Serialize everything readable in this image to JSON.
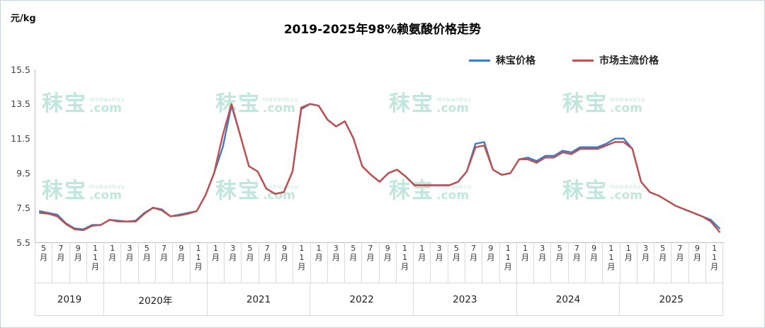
{
  "title": "2019-2025年98%赖氨酸价格走势",
  "y_axis_label": "元/kg",
  "legend": {
    "items": [
      {
        "label": "秣宝价格",
        "color": "#3E7BC4"
      },
      {
        "label": "市场主流价格",
        "color": "#C0504D"
      }
    ]
  },
  "watermark": {
    "main": "秣宝",
    "sub_top": "mobaobuy",
    "sub_bottom": ".com",
    "color": "#77C9B0"
  },
  "chart_data": {
    "type": "line",
    "title": "2019-2025年98%赖氨酸价格走势",
    "ylabel": "元/kg",
    "ylim": [
      5.5,
      15.5
    ],
    "y_ticks": [
      5.5,
      7.5,
      9.5,
      11.5,
      13.5,
      15.5
    ],
    "grid": false,
    "legend_position": "top",
    "x_start": "2019-05",
    "x_end": "2025-11",
    "x_tick_labels": [
      "5月",
      "7月",
      "9月",
      "11月",
      "1月",
      "3月",
      "5月",
      "7月",
      "9月",
      "11月",
      "1月",
      "3月",
      "5月",
      "7月",
      "9月",
      "11月",
      "1月",
      "3月",
      "5月",
      "7月",
      "9月",
      "11月",
      "1月",
      "3月",
      "5月",
      "7月",
      "9月",
      "11月",
      "1月",
      "3月",
      "5月",
      "7月",
      "9月",
      "11月",
      "1月",
      "3月",
      "5月",
      "7月",
      "9月",
      "11月"
    ],
    "year_cells": [
      {
        "label": "2019",
        "span": 4
      },
      {
        "label": "2020年",
        "span": 6
      },
      {
        "label": "2021",
        "span": 6
      },
      {
        "label": "2022",
        "span": 6
      },
      {
        "label": "2023",
        "span": 6
      },
      {
        "label": "2024",
        "span": 6
      },
      {
        "label": "2025",
        "span": 6
      }
    ],
    "series": [
      {
        "name": "秣宝价格",
        "color": "#3E7BC4",
        "values": [
          7.3,
          7.2,
          7.1,
          6.6,
          6.3,
          6.25,
          6.5,
          6.5,
          6.8,
          6.75,
          6.7,
          6.75,
          7.2,
          7.5,
          7.4,
          7.0,
          7.1,
          7.2,
          7.3,
          8.2,
          9.5,
          11.0,
          13.4,
          11.7,
          9.9,
          9.6,
          8.6,
          8.3,
          8.4,
          9.6,
          13.2,
          13.5,
          13.4,
          12.6,
          12.2,
          12.5,
          11.5,
          9.9,
          9.4,
          9.0,
          9.5,
          9.7,
          9.3,
          8.8,
          8.8,
          8.8,
          8.8,
          8.8,
          9.0,
          9.6,
          11.2,
          11.3,
          9.7,
          9.4,
          9.5,
          10.3,
          10.4,
          10.2,
          10.5,
          10.5,
          10.8,
          10.7,
          11.0,
          11.0,
          11.0,
          11.2,
          11.5,
          11.5,
          10.9,
          9.0,
          8.4,
          8.2,
          7.9,
          7.6,
          7.4,
          7.2,
          7.0,
          6.8,
          6.3
        ]
      },
      {
        "name": "市场主流价格",
        "color": "#C0504D",
        "values": [
          7.2,
          7.15,
          7.0,
          6.55,
          6.25,
          6.2,
          6.45,
          6.5,
          6.8,
          6.7,
          6.7,
          6.7,
          7.15,
          7.5,
          7.35,
          7.0,
          7.05,
          7.15,
          7.3,
          8.2,
          9.5,
          11.7,
          13.5,
          11.7,
          9.9,
          9.6,
          8.6,
          8.3,
          8.4,
          9.6,
          13.3,
          13.5,
          13.4,
          12.6,
          12.2,
          12.5,
          11.5,
          9.9,
          9.4,
          9.0,
          9.5,
          9.7,
          9.3,
          8.8,
          8.8,
          8.8,
          8.8,
          8.8,
          9.0,
          9.6,
          11.0,
          11.1,
          9.7,
          9.4,
          9.5,
          10.3,
          10.3,
          10.1,
          10.4,
          10.4,
          10.7,
          10.6,
          10.9,
          10.9,
          10.9,
          11.1,
          11.3,
          11.3,
          10.9,
          9.0,
          8.4,
          8.2,
          7.9,
          7.6,
          7.4,
          7.2,
          7.0,
          6.7,
          6.1
        ]
      }
    ]
  },
  "watermark_positions": {
    "cols": [
      58,
      303,
      548,
      793
    ],
    "rows": [
      120,
      243
    ]
  }
}
